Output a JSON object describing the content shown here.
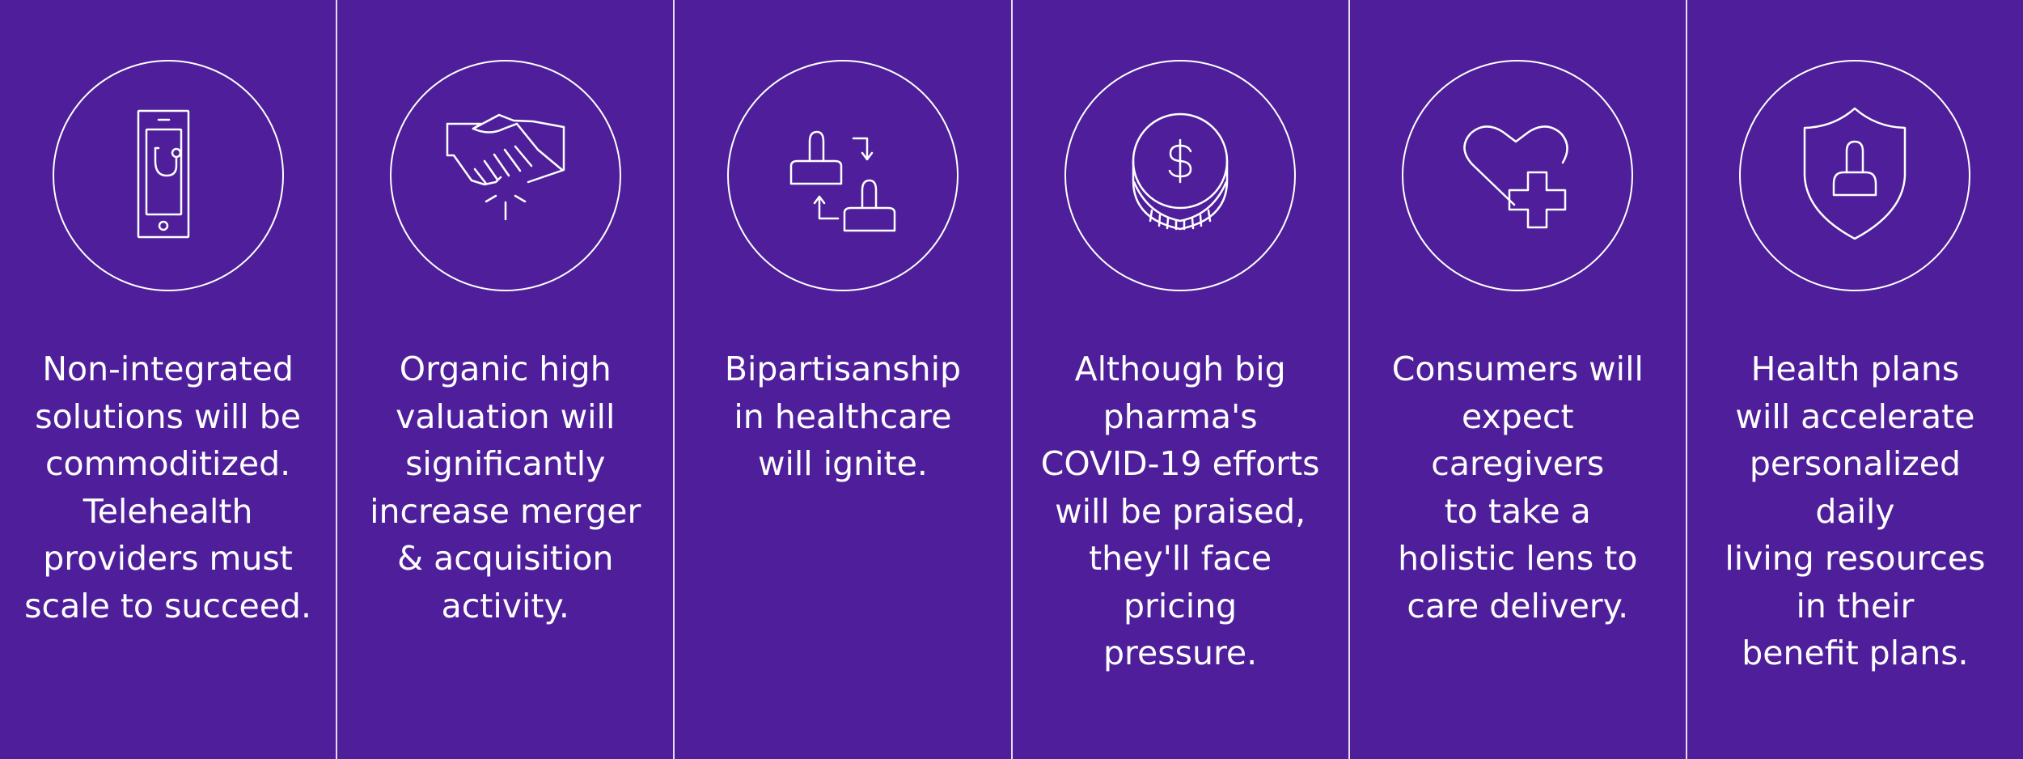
{
  "colors": {
    "background": "#4f1f9b",
    "foreground": "#ffffff"
  },
  "panels": [
    {
      "icon": "tablet-stethoscope-icon",
      "text": "Non-integrated\nsolutions will be\ncommoditized.\nTelehealth\nproviders must\nscale to succeed."
    },
    {
      "icon": "handshake-icon",
      "text": "Organic high\nvaluation will\nsignificantly\nincrease merger\n& acquisition\nactivity."
    },
    {
      "icon": "people-exchange-icon",
      "text": "Bipartisanship\nin healthcare\nwill ignite."
    },
    {
      "icon": "coin-dollar-icon",
      "text": "Although big\npharma's\nCOVID-19 efforts\nwill be praised,\nthey'll face pricing\npressure."
    },
    {
      "icon": "heart-plus-icon",
      "text": "Consumers will\nexpect caregivers\nto take a\nholistic lens to\ncare delivery."
    },
    {
      "icon": "shield-person-icon",
      "text": "Health plans\nwill accelerate\npersonalized daily\nliving resources\nin their\nbenefit plans."
    }
  ]
}
